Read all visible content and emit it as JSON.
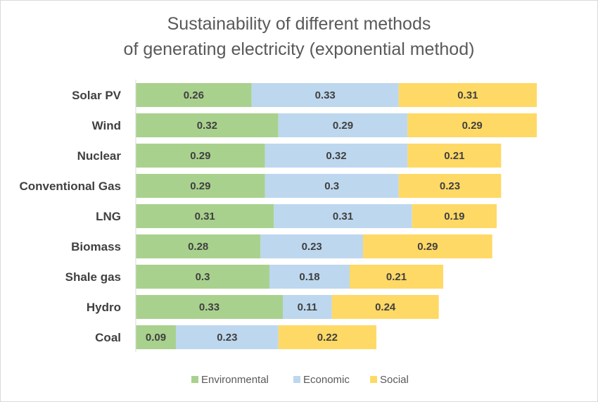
{
  "chart_data": {
    "type": "bar",
    "orientation": "horizontal",
    "stacked": true,
    "title_lines": [
      "Sustainability of different methods",
      "of generating electricity (exponential method)"
    ],
    "categories": [
      "Solar PV",
      "Wind",
      "Nuclear",
      "Conventional Gas",
      "LNG",
      "Biomass",
      "Shale gas",
      "Hydro",
      "Coal"
    ],
    "series": [
      {
        "name": "Environmental",
        "color": "#A9D18E",
        "values": [
          0.26,
          0.32,
          0.29,
          0.29,
          0.31,
          0.28,
          0.3,
          0.33,
          0.09
        ]
      },
      {
        "name": "Economic",
        "color": "#BDD7EE",
        "values": [
          0.33,
          0.29,
          0.32,
          0.3,
          0.31,
          0.23,
          0.18,
          0.11,
          0.23
        ]
      },
      {
        "name": "Social",
        "color": "#FFD966",
        "values": [
          0.31,
          0.29,
          0.21,
          0.23,
          0.19,
          0.29,
          0.21,
          0.24,
          0.22
        ]
      }
    ],
    "xlim": [
      0,
      0.9
    ],
    "grid": false,
    "legend_position": "bottom"
  }
}
